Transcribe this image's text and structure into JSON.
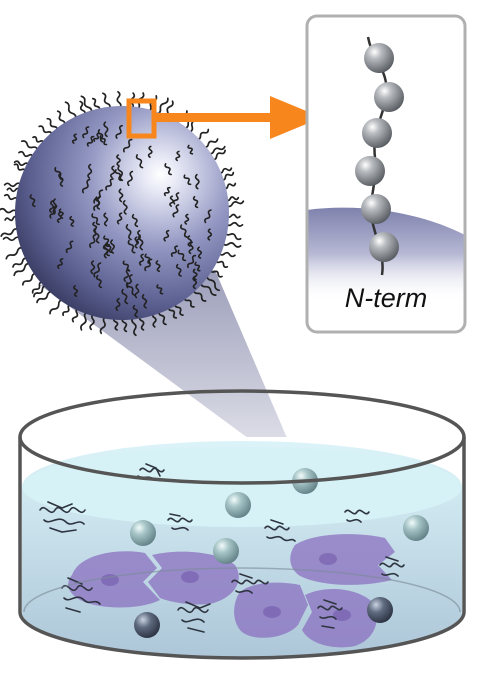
{
  "inset": {
    "label": "N-term"
  },
  "colors": {
    "arrow": "#f7861d",
    "sphere": "#7b7fac",
    "chain": "#222222",
    "bead": "#9a9ea2",
    "beam": "#5a5e8c",
    "liquid_top": "#d8f3f8",
    "liquid_body": "#b7cfe0",
    "cell": "#8a6fc0",
    "dish_rim": "#555555"
  },
  "icons": [
    "nanoparticle-sphere",
    "zoom-arrow",
    "bead-chain",
    "petri-dish",
    "protein-structure",
    "cell",
    "bead"
  ]
}
